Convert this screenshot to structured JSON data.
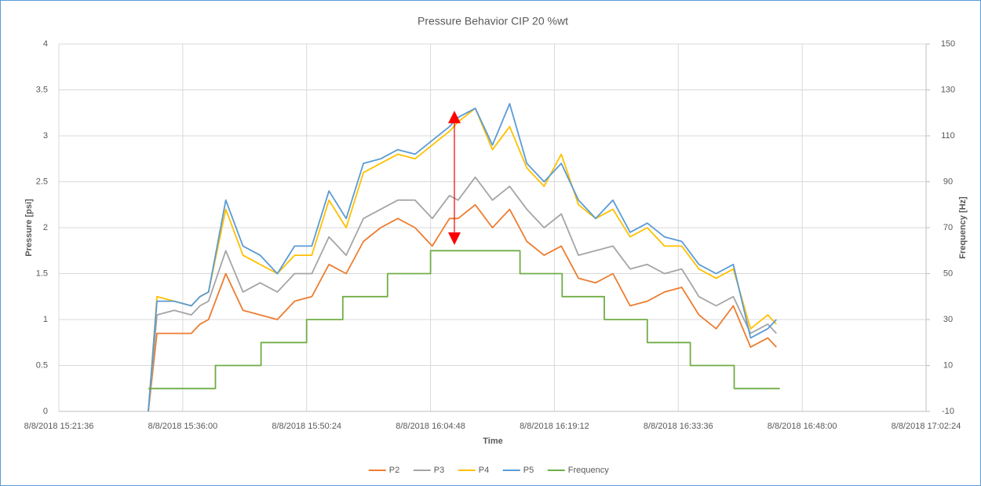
{
  "chart_data": {
    "type": "line",
    "title": "Pressure Behavior CIP 20 %wt",
    "xlabel": "Time",
    "ylabel": "Pressure [psi]",
    "y2label": "Frequency [Hz]",
    "x": [
      "2018-08-08T15:32:00",
      "2018-08-08T15:33:00",
      "2018-08-08T15:35:00",
      "2018-08-08T15:37:00",
      "2018-08-08T15:38:00",
      "2018-08-08T15:39:00",
      "2018-08-08T15:41:00",
      "2018-08-08T15:43:00",
      "2018-08-08T15:45:00",
      "2018-08-08T15:47:00",
      "2018-08-08T15:49:00",
      "2018-08-08T15:51:00",
      "2018-08-08T15:53:00",
      "2018-08-08T15:55:00",
      "2018-08-08T15:57:00",
      "2018-08-08T15:59:00",
      "2018-08-08T16:01:00",
      "2018-08-08T16:03:00",
      "2018-08-08T16:05:00",
      "2018-08-08T16:07:00",
      "2018-08-08T16:08:00",
      "2018-08-08T16:10:00",
      "2018-08-08T16:12:00",
      "2018-08-08T16:14:00",
      "2018-08-08T16:16:00",
      "2018-08-08T16:18:00",
      "2018-08-08T16:20:00",
      "2018-08-08T16:22:00",
      "2018-08-08T16:24:00",
      "2018-08-08T16:26:00",
      "2018-08-08T16:28:00",
      "2018-08-08T16:30:00",
      "2018-08-08T16:32:00",
      "2018-08-08T16:34:00",
      "2018-08-08T16:36:00",
      "2018-08-08T16:38:00",
      "2018-08-08T16:40:00",
      "2018-08-08T16:42:00",
      "2018-08-08T16:44:00",
      "2018-08-08T16:45:00"
    ],
    "series": [
      {
        "name": "P2",
        "color": "#ed7d31",
        "values": [
          0,
          0.85,
          0.85,
          0.85,
          0.95,
          1.0,
          1.5,
          1.1,
          1.05,
          1.0,
          1.2,
          1.25,
          1.6,
          1.5,
          1.85,
          2.0,
          2.1,
          2.0,
          1.8,
          2.1,
          2.1,
          2.25,
          2.0,
          2.2,
          1.85,
          1.7,
          1.8,
          1.45,
          1.4,
          1.5,
          1.15,
          1.2,
          1.3,
          1.35,
          1.05,
          0.9,
          1.15,
          0.7,
          0.8,
          0.7
        ]
      },
      {
        "name": "P3",
        "color": "#a5a5a5",
        "values": [
          0,
          1.05,
          1.1,
          1.05,
          1.15,
          1.2,
          1.75,
          1.3,
          1.4,
          1.3,
          1.5,
          1.5,
          1.9,
          1.7,
          2.1,
          2.2,
          2.3,
          2.3,
          2.1,
          2.35,
          2.3,
          2.55,
          2.3,
          2.45,
          2.2,
          2.0,
          2.15,
          1.7,
          1.75,
          1.8,
          1.55,
          1.6,
          1.5,
          1.55,
          1.25,
          1.15,
          1.25,
          0.85,
          0.95,
          0.85
        ]
      },
      {
        "name": "P4",
        "color": "#ffc000",
        "values": [
          0,
          1.25,
          1.2,
          1.15,
          1.25,
          1.3,
          2.2,
          1.7,
          1.6,
          1.5,
          1.7,
          1.7,
          2.3,
          2.0,
          2.6,
          2.7,
          2.8,
          2.75,
          2.9,
          3.05,
          3.15,
          3.3,
          2.85,
          3.1,
          2.65,
          2.45,
          2.8,
          2.25,
          2.1,
          2.2,
          1.9,
          2.0,
          1.8,
          1.8,
          1.55,
          1.45,
          1.55,
          0.9,
          1.05,
          0.95
        ]
      },
      {
        "name": "P5",
        "color": "#5b9bd5",
        "values": [
          0,
          1.2,
          1.2,
          1.15,
          1.25,
          1.3,
          2.3,
          1.8,
          1.7,
          1.5,
          1.8,
          1.8,
          2.4,
          2.1,
          2.7,
          2.75,
          2.85,
          2.8,
          2.95,
          3.1,
          3.2,
          3.3,
          2.9,
          3.35,
          2.7,
          2.5,
          2.7,
          2.3,
          2.1,
          2.3,
          1.95,
          2.05,
          1.9,
          1.85,
          1.6,
          1.5,
          1.6,
          0.8,
          0.9,
          1.0
        ]
      },
      {
        "name": "Frequency",
        "color": "#70ad47",
        "axis": "y2",
        "x": [
          "2018-08-08T15:32:00",
          "2018-08-08T15:39:48",
          "2018-08-08T15:39:48",
          "2018-08-08T15:45:06",
          "2018-08-08T15:45:06",
          "2018-08-08T15:50:24",
          "2018-08-08T15:50:24",
          "2018-08-08T15:54:36",
          "2018-08-08T15:54:36",
          "2018-08-08T15:59:48",
          "2018-08-08T15:59:48",
          "2018-08-08T16:04:48",
          "2018-08-08T16:04:48",
          "2018-08-08T16:15:12",
          "2018-08-08T16:15:12",
          "2018-08-08T16:20:06",
          "2018-08-08T16:20:06",
          "2018-08-08T16:25:00",
          "2018-08-08T16:25:00",
          "2018-08-08T16:30:00",
          "2018-08-08T16:30:00",
          "2018-08-08T16:35:00",
          "2018-08-08T16:35:00",
          "2018-08-08T16:40:06",
          "2018-08-08T16:40:06",
          "2018-08-08T16:45:24"
        ],
        "values": [
          0,
          0,
          10,
          10,
          20,
          20,
          30,
          30,
          40,
          40,
          50,
          50,
          60,
          60,
          50,
          50,
          40,
          40,
          30,
          30,
          20,
          20,
          10,
          10,
          0,
          0
        ]
      }
    ],
    "xlim": [
      "2018-08-08T15:21:36",
      "2018-08-08T17:02:24"
    ],
    "xticks": [
      {
        "value": "2018-08-08T15:21:36",
        "label": "8/8/2018 15:21:36"
      },
      {
        "value": "2018-08-08T15:36:00",
        "label": "8/8/2018 15:36:00"
      },
      {
        "value": "2018-08-08T15:50:24",
        "label": "8/8/2018 15:50:24"
      },
      {
        "value": "2018-08-08T16:04:48",
        "label": "8/8/2018 16:04:48"
      },
      {
        "value": "2018-08-08T16:19:12",
        "label": "8/8/2018 16:19:12"
      },
      {
        "value": "2018-08-08T16:33:36",
        "label": "8/8/2018 16:33:36"
      },
      {
        "value": "2018-08-08T16:48:00",
        "label": "8/8/2018 16:48:00"
      },
      {
        "value": "2018-08-08T17:02:24",
        "label": "8/8/2018 17:02:24"
      }
    ],
    "ylim": [
      0,
      4
    ],
    "yticks": [
      0,
      0.5,
      1,
      1.5,
      2,
      2.5,
      3,
      3.5,
      4
    ],
    "y2lim": [
      -10,
      150
    ],
    "y2ticks": [
      -10,
      10,
      30,
      50,
      70,
      90,
      110,
      130,
      150
    ],
    "grid": true,
    "legend": "bottom"
  }
}
